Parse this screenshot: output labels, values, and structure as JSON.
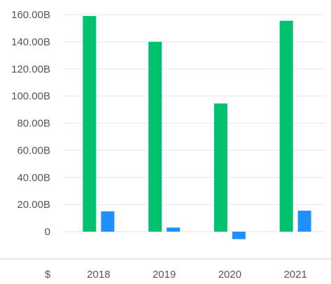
{
  "chart_data": {
    "type": "bar",
    "title": "",
    "xlabel": "",
    "ylabel": "",
    "currency_label": "$",
    "categories": [
      "2018",
      "2019",
      "2020",
      "2021"
    ],
    "series": [
      {
        "values": [
          159.0,
          140.0,
          94.5,
          155.5
        ],
        "color": "#00C16E"
      },
      {
        "values": [
          15.0,
          3.0,
          -5.5,
          15.5
        ],
        "color": "#1E90FF"
      }
    ],
    "yticks": [
      0,
      20,
      40,
      60,
      80,
      100,
      120,
      140,
      160
    ],
    "ytick_labels": [
      "0",
      "20.00B",
      "40.00B",
      "60.00B",
      "80.00B",
      "100.00B",
      "120.00B",
      "140.00B",
      "160.00B"
    ],
    "ylim": [
      -10,
      160
    ],
    "grid": true,
    "legend": "none",
    "colors": {
      "grid": "#e6e6e6",
      "axis_text": "#555555",
      "bottom_line": "#cfcfcf"
    }
  }
}
